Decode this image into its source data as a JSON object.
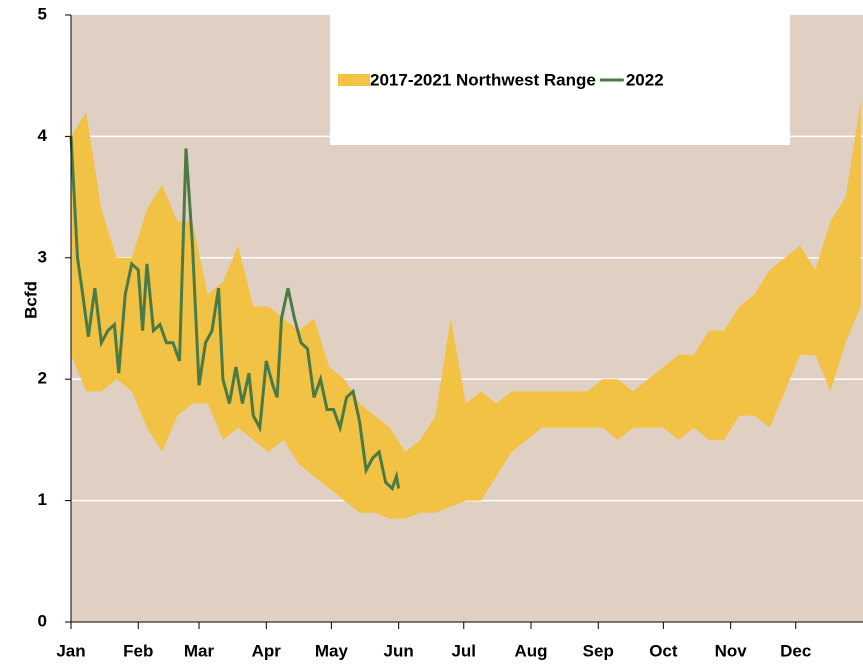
{
  "chart_data": {
    "type": "range_line",
    "y_label": "Bcfd",
    "xlim": [
      0,
      365
    ],
    "xticks": [
      {
        "value": 0,
        "label": "Jan"
      },
      {
        "value": 31,
        "label": "Feb"
      },
      {
        "value": 59,
        "label": "Mar"
      },
      {
        "value": 90,
        "label": "Apr"
      },
      {
        "value": 120,
        "label": "May"
      },
      {
        "value": 151,
        "label": "Jun"
      },
      {
        "value": 181,
        "label": "Jul"
      },
      {
        "value": 212,
        "label": "Aug"
      },
      {
        "value": 243,
        "label": "Sep"
      },
      {
        "value": 273,
        "label": "Oct"
      },
      {
        "value": 304,
        "label": "Nov"
      },
      {
        "value": 334,
        "label": "Dec"
      }
    ],
    "ylim": [
      0,
      5
    ],
    "yticks": [
      0,
      1,
      2,
      3,
      4,
      5
    ],
    "grid": true,
    "series": [
      {
        "name": "2017-2021 Northwest Range",
        "color": "#f2c244",
        "x": [
          0,
          7,
          14,
          21,
          28,
          35,
          42,
          49,
          56,
          63,
          70,
          77,
          84,
          91,
          98,
          105,
          112,
          119,
          126,
          133,
          140,
          147,
          154,
          161,
          168,
          175,
          182,
          189,
          196,
          203,
          210,
          217,
          224,
          231,
          238,
          245,
          252,
          259,
          266,
          273,
          280,
          287,
          294,
          301,
          308,
          315,
          322,
          329,
          336,
          343,
          350,
          357,
          364
        ],
        "low": [
          2.2,
          1.9,
          1.9,
          2.0,
          1.9,
          1.6,
          1.4,
          1.7,
          1.8,
          1.8,
          1.5,
          1.6,
          1.5,
          1.4,
          1.5,
          1.3,
          1.2,
          1.1,
          1.0,
          0.9,
          0.9,
          0.85,
          0.85,
          0.9,
          0.9,
          0.95,
          1.0,
          1.0,
          1.2,
          1.4,
          1.5,
          1.6,
          1.6,
          1.6,
          1.6,
          1.6,
          1.5,
          1.6,
          1.6,
          1.6,
          1.5,
          1.6,
          1.5,
          1.5,
          1.7,
          1.7,
          1.6,
          1.9,
          2.2,
          2.2,
          1.9,
          2.3,
          2.6
        ],
        "high": [
          4.0,
          4.2,
          3.4,
          3.0,
          3.0,
          3.4,
          3.6,
          3.3,
          3.3,
          2.7,
          2.8,
          3.1,
          2.6,
          2.6,
          2.5,
          2.4,
          2.5,
          2.1,
          2.0,
          1.8,
          1.7,
          1.6,
          1.4,
          1.5,
          1.7,
          2.5,
          1.8,
          1.9,
          1.8,
          1.9,
          1.9,
          1.9,
          1.9,
          1.9,
          1.9,
          2.0,
          2.0,
          1.9,
          2.0,
          2.1,
          2.2,
          2.2,
          2.4,
          2.4,
          2.6,
          2.7,
          2.9,
          3.0,
          3.1,
          2.9,
          3.3,
          3.5,
          4.3
        ]
      },
      {
        "name": "2022",
        "color": "#4a7a45",
        "x": [
          0,
          3,
          5,
          8,
          11,
          14,
          17,
          20,
          22,
          25,
          28,
          31,
          33,
          35,
          38,
          41,
          44,
          47,
          50,
          53,
          56,
          59,
          62,
          65,
          68,
          70,
          73,
          76,
          79,
          82,
          84,
          87,
          90,
          93,
          95,
          97,
          100,
          103,
          106,
          109,
          112,
          115,
          118,
          121,
          124,
          127,
          130,
          133,
          136,
          139,
          142,
          145,
          148,
          150,
          151
        ],
        "values": [
          4.0,
          3.0,
          2.75,
          2.35,
          2.75,
          2.3,
          2.4,
          2.45,
          2.05,
          2.7,
          2.95,
          2.9,
          2.4,
          2.95,
          2.4,
          2.45,
          2.3,
          2.3,
          2.15,
          3.9,
          3.1,
          1.95,
          2.3,
          2.4,
          2.75,
          2.0,
          1.8,
          2.1,
          1.8,
          2.05,
          1.7,
          1.6,
          2.15,
          1.95,
          1.85,
          2.5,
          2.75,
          2.5,
          2.3,
          2.25,
          1.85,
          2.0,
          1.75,
          1.75,
          1.6,
          1.85,
          1.9,
          1.65,
          1.25,
          1.35,
          1.4,
          1.15,
          1.1,
          1.2,
          1.1
        ]
      }
    ]
  }
}
